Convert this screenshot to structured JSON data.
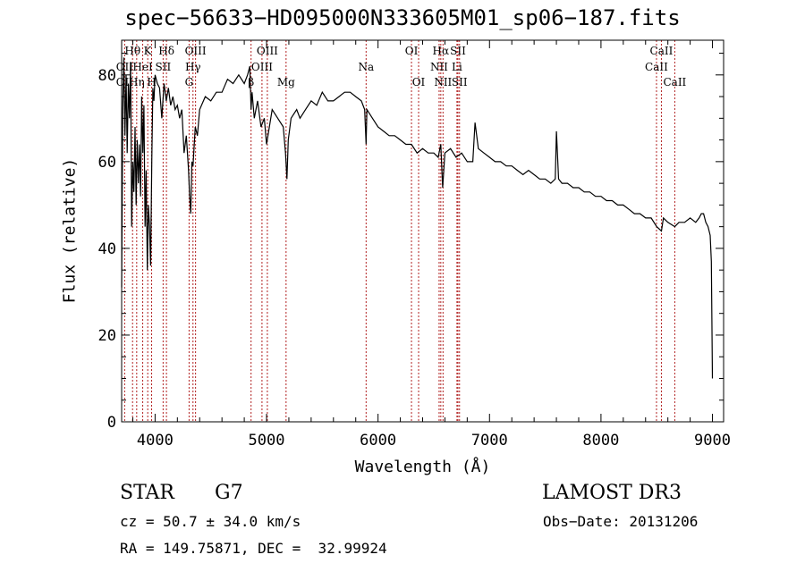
{
  "header": {
    "title": "spec−56633−HD095000N333605M01_sp06−187.fits"
  },
  "info": {
    "object_class": "STAR",
    "subclass": "G7",
    "survey": "LAMOST DR3",
    "redshift": "cz = 50.7 ± 34.0 km/s",
    "obs_date": "Obs−Date: 20131206",
    "coords": "RA = 149.75871, DEC =  32.99924"
  },
  "chart_data": {
    "type": "line",
    "xlabel": "Wavelength (Å)",
    "ylabel": "Flux (relative)",
    "xlim": [
      3700,
      9100
    ],
    "ylim": [
      0,
      88
    ],
    "xticks": [
      4000,
      5000,
      6000,
      7000,
      8000,
      9000
    ],
    "yticks": [
      0,
      20,
      40,
      60,
      80
    ],
    "line_color": "#000000",
    "marker_color": "#b22222",
    "series": [
      {
        "x": [
          3700,
          3710,
          3720,
          3730,
          3740,
          3750,
          3760,
          3770,
          3780,
          3790,
          3800,
          3810,
          3820,
          3830,
          3840,
          3850,
          3860,
          3870,
          3880,
          3890,
          3900,
          3910,
          3920,
          3930,
          3940,
          3950,
          3960,
          3970,
          3980,
          3990,
          4000,
          4020,
          4040,
          4060,
          4080,
          4100,
          4120,
          4140,
          4160,
          4180,
          4200,
          4220,
          4240,
          4260,
          4280,
          4300,
          4310,
          4320,
          4330,
          4340,
          4360,
          4380,
          4400,
          4450,
          4500,
          4550,
          4600,
          4650,
          4700,
          4750,
          4800,
          4830,
          4850,
          4861,
          4870,
          4890,
          4920,
          4950,
          4980,
          5000,
          5050,
          5100,
          5150,
          5170,
          5183,
          5195,
          5220,
          5270,
          5300,
          5350,
          5400,
          5450,
          5500,
          5550,
          5600,
          5650,
          5700,
          5750,
          5800,
          5850,
          5880,
          5893,
          5900,
          5950,
          6000,
          6050,
          6100,
          6150,
          6200,
          6250,
          6300,
          6350,
          6400,
          6450,
          6500,
          6540,
          6563,
          6580,
          6600,
          6650,
          6700,
          6750,
          6800,
          6850,
          6870,
          6900,
          6950,
          7000,
          7050,
          7100,
          7150,
          7200,
          7250,
          7300,
          7350,
          7400,
          7450,
          7500,
          7550,
          7590,
          7600,
          7620,
          7650,
          7700,
          7750,
          7800,
          7850,
          7900,
          7950,
          8000,
          8050,
          8100,
          8150,
          8200,
          8250,
          8300,
          8350,
          8400,
          8450,
          8500,
          8542,
          8560,
          8600,
          8662,
          8700,
          8750,
          8800,
          8850,
          8880,
          8900,
          8920,
          8940,
          8960,
          8980,
          8990,
          9000
        ],
        "y": [
          31,
          72,
          84,
          66,
          80,
          62,
          78,
          70,
          83,
          45,
          60,
          53,
          68,
          50,
          65,
          55,
          64,
          52,
          75,
          62,
          73,
          45,
          58,
          35,
          50,
          45,
          36,
          60,
          77,
          74,
          80,
          78,
          77,
          70,
          78,
          74,
          77,
          73,
          75,
          72,
          73,
          70,
          72,
          62,
          66,
          58,
          52,
          48,
          60,
          59,
          68,
          66,
          72,
          75,
          74,
          76,
          76,
          79,
          78,
          80,
          78,
          80,
          82,
          72,
          76,
          70,
          74,
          68,
          70,
          64,
          72,
          70,
          68,
          62,
          56,
          65,
          70,
          72,
          70,
          72,
          74,
          73,
          76,
          74,
          74,
          75,
          76,
          76,
          75,
          74,
          72,
          64,
          72,
          70,
          68,
          67,
          66,
          66,
          65,
          64,
          64,
          62,
          63,
          62,
          62,
          61,
          64,
          54,
          62,
          63,
          61,
          62,
          60,
          60,
          69,
          63,
          62,
          61,
          60,
          60,
          59,
          59,
          58,
          57,
          58,
          57,
          56,
          56,
          55,
          56,
          67,
          56,
          55,
          55,
          54,
          54,
          53,
          53,
          52,
          52,
          51,
          51,
          50,
          50,
          49,
          48,
          48,
          47,
          47,
          45,
          44,
          47,
          46,
          45,
          46,
          46,
          47,
          46,
          47,
          48,
          48,
          46,
          45,
          43,
          37,
          10
        ]
      }
    ],
    "lines": [
      {
        "label": "Hθ",
        "x": 3798,
        "row": 0
      },
      {
        "label": "OII",
        "x": 3727,
        "row": 1
      },
      {
        "label": "OII",
        "x": 3727,
        "row": 2
      },
      {
        "label": "Hη",
        "x": 3835,
        "row": 2
      },
      {
        "label": "HeI",
        "x": 3889,
        "row": 1
      },
      {
        "label": "K",
        "x": 3934,
        "row": 0
      },
      {
        "label": "H",
        "x": 3969,
        "row": 2
      },
      {
        "label": "SII",
        "x": 4072,
        "row": 1
      },
      {
        "label": "Hδ",
        "x": 4102,
        "row": 0
      },
      {
        "label": "OIII",
        "x": 4363,
        "row": 0
      },
      {
        "label": "Hγ",
        "x": 4340,
        "row": 1
      },
      {
        "label": "G",
        "x": 4305,
        "row": 2
      },
      {
        "label": "OIII",
        "x": 5007,
        "row": 0
      },
      {
        "label": "OIII",
        "x": 4959,
        "row": 1
      },
      {
        "label": "β",
        "x": 4861,
        "row": 2
      },
      {
        "label": "Mg",
        "x": 5175,
        "row": 2
      },
      {
        "label": "Na",
        "x": 5893,
        "row": 1
      },
      {
        "label": "OI",
        "x": 6300,
        "row": 0
      },
      {
        "label": "OI",
        "x": 6364,
        "row": 2
      },
      {
        "label": "Hα",
        "x": 6563,
        "row": 0
      },
      {
        "label": "SII",
        "x": 6717,
        "row": 0
      },
      {
        "label": "NII",
        "x": 6548,
        "row": 1
      },
      {
        "label": "Li",
        "x": 6708,
        "row": 1
      },
      {
        "label": "NII",
        "x": 6583,
        "row": 2
      },
      {
        "label": "SII",
        "x": 6731,
        "row": 2
      },
      {
        "label": "CaII",
        "x": 8542,
        "row": 0
      },
      {
        "label": "CaII",
        "x": 8498,
        "row": 1
      },
      {
        "label": "CaII",
        "x": 8662,
        "row": 2
      }
    ]
  }
}
